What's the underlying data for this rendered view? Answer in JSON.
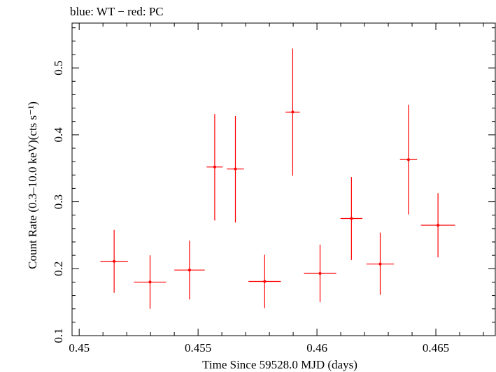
{
  "chart_data": {
    "type": "scatter",
    "title": "blue: WT − red: PC",
    "xlabel": "Time Since 59528.0 MJD (days)",
    "ylabel": "Count Rate (0.3–10.0 keV)(cts s⁻¹)",
    "xlim": [
      0.4497,
      0.4675
    ],
    "ylim": [
      0.1,
      0.567
    ],
    "xticks": [
      0.45,
      0.455,
      0.46,
      0.465
    ],
    "xtick_labels": [
      "0.45",
      "0.455",
      "0.46",
      "0.465"
    ],
    "yticks": [
      0.1,
      0.2,
      0.3,
      0.4,
      0.5
    ],
    "ytick_labels": [
      "0.1",
      "0.2",
      "0.3",
      "0.4",
      "0.5"
    ],
    "grid": false,
    "legend": "none",
    "series": [
      {
        "color": "#ff0000",
        "points": [
          {
            "x": 0.45147,
            "y": 0.211,
            "xerr": 0.00058,
            "ylo": 0.164,
            "yhi": 0.258
          },
          {
            "x": 0.45298,
            "y": 0.18,
            "xerr": 0.00068,
            "ylo": 0.14,
            "yhi": 0.22
          },
          {
            "x": 0.45464,
            "y": 0.198,
            "xerr": 0.00064,
            "ylo": 0.154,
            "yhi": 0.242
          },
          {
            "x": 0.4557,
            "y": 0.352,
            "xerr": 0.00034,
            "ylo": 0.272,
            "yhi": 0.431
          },
          {
            "x": 0.45657,
            "y": 0.349,
            "xerr": 0.00036,
            "ylo": 0.269,
            "yhi": 0.428
          },
          {
            "x": 0.4578,
            "y": 0.181,
            "xerr": 0.00068,
            "ylo": 0.141,
            "yhi": 0.221
          },
          {
            "x": 0.45898,
            "y": 0.434,
            "xerr": 0.0003,
            "ylo": 0.339,
            "yhi": 0.529
          },
          {
            "x": 0.46013,
            "y": 0.193,
            "xerr": 0.00068,
            "ylo": 0.15,
            "yhi": 0.236
          },
          {
            "x": 0.46145,
            "y": 0.275,
            "xerr": 0.00046,
            "ylo": 0.213,
            "yhi": 0.337
          },
          {
            "x": 0.46266,
            "y": 0.207,
            "xerr": 0.00058,
            "ylo": 0.161,
            "yhi": 0.254
          },
          {
            "x": 0.46385,
            "y": 0.363,
            "xerr": 0.00036,
            "ylo": 0.281,
            "yhi": 0.445
          },
          {
            "x": 0.46509,
            "y": 0.265,
            "xerr": 0.00072,
            "ylo": 0.217,
            "yhi": 0.313
          }
        ]
      }
    ]
  }
}
